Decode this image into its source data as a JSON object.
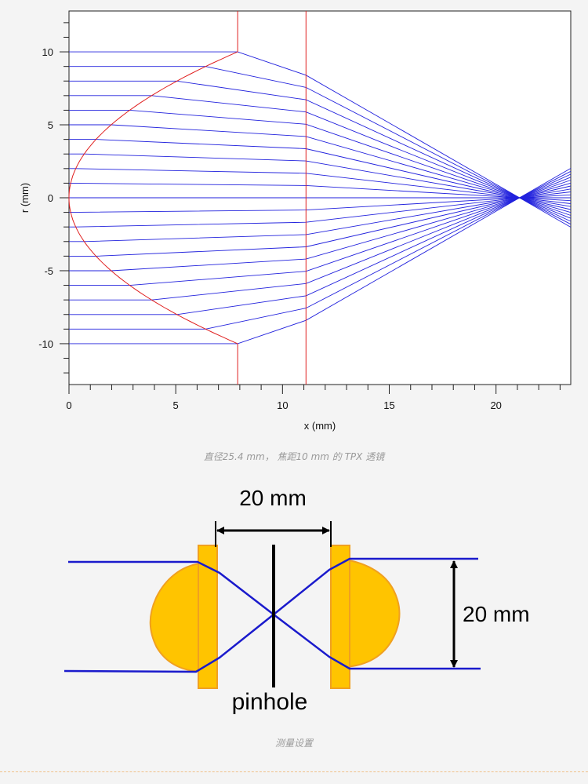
{
  "raytrace": {
    "chart_data": {
      "type": "line",
      "xlabel": "x (mm)",
      "ylabel": "r (mm)",
      "xlim": [
        0,
        23.5
      ],
      "ylim": [
        -12.8,
        12.8
      ],
      "x_ticks": [
        0,
        5,
        10,
        15,
        20
      ],
      "y_ticks": [
        -10,
        -5,
        0,
        5,
        10
      ],
      "lens_front_surface_vertex_x": 0,
      "lens_edge_x": 7.9,
      "lens_back_plane_x": 11.1,
      "lens_aperture_r": 10,
      "focus_x": 21.1,
      "ray_heights": [
        -10,
        -9,
        -8,
        -7,
        -6,
        -5,
        -4,
        -3,
        -2,
        -1,
        0,
        1,
        2,
        3,
        4,
        5,
        6,
        7,
        8,
        9,
        10
      ],
      "ray_color": "#2222dd",
      "lens_color": "#e02020"
    },
    "caption": "直径25.4 mm， 焦距10 mm 的 TPX 透镜"
  },
  "setup": {
    "dimension_top_label": "20 mm",
    "dimension_right_label": "20 mm",
    "pinhole_label": "pinhole",
    "lens_color": "#ffc400",
    "lens_stroke_color": "#f0a020",
    "beam_color": "#1a1acc",
    "caption": "测量设置"
  }
}
